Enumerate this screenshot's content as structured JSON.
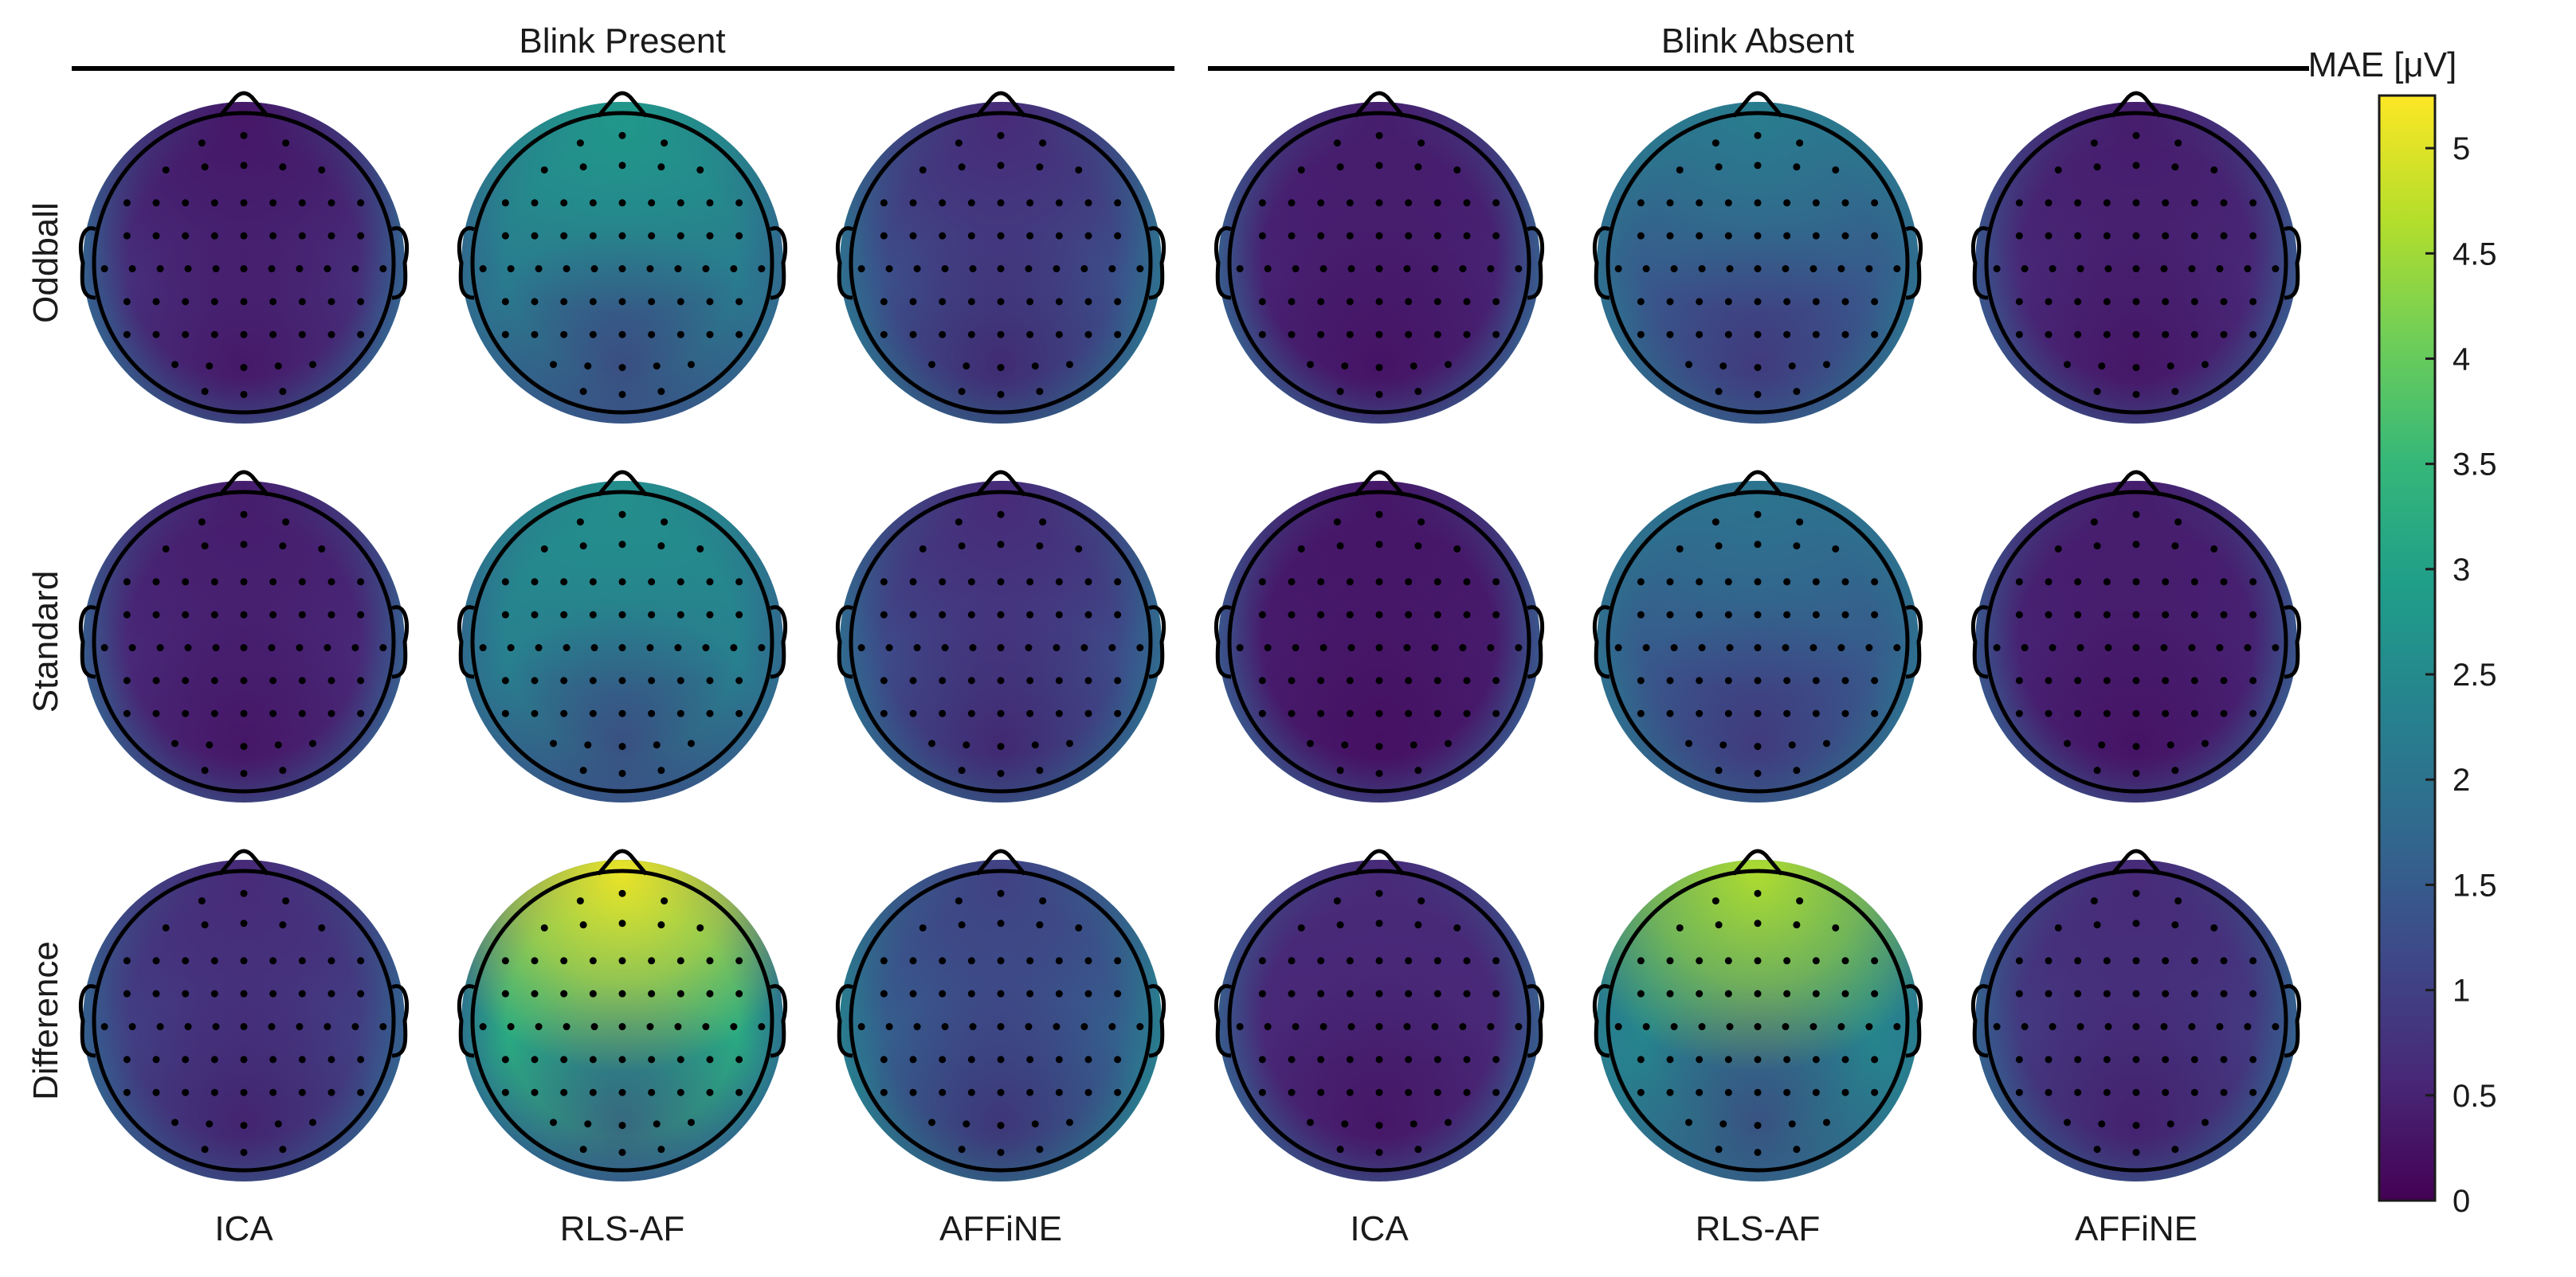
{
  "groups": [
    {
      "label": "Blink Present"
    },
    {
      "label": "Blink Absent"
    }
  ],
  "row_labels": [
    "Oddball",
    "Standard",
    "Difference"
  ],
  "column_labels": [
    "ICA",
    "RLS-AF",
    "AFFiNE",
    "ICA",
    "RLS-AF",
    "AFFiNE"
  ],
  "colorbar": {
    "label": "MAE [μV]",
    "min": 0,
    "max": 5.25,
    "tick_labels": [
      "0",
      "0.5",
      "1",
      "1.5",
      "2",
      "2.5",
      "3",
      "3.5",
      "4",
      "4.5",
      "5"
    ],
    "colormap": "viridis",
    "colors": [
      "#440154",
      "#482878",
      "#3e4989",
      "#31688e",
      "#26828e",
      "#1f9e89",
      "#35b779",
      "#6ece58",
      "#b5de2b",
      "#fde725"
    ]
  },
  "maps": [
    [
      {
        "base": 0.7,
        "rim": 1.6,
        "frontal": 0.3,
        "occipital": 0.1
      },
      {
        "base": 2.2,
        "rim": 1.8,
        "frontal": 2.8,
        "occipital": 0.6
      },
      {
        "base": 1.3,
        "rim": 1.9,
        "frontal": 0.6,
        "occipital": 0.2
      },
      {
        "base": 0.5,
        "rim": 1.5,
        "frontal": 0.4,
        "occipital": 0.1
      },
      {
        "base": 1.5,
        "rim": 1.9,
        "frontal": 2.2,
        "occipital": 0.5
      },
      {
        "base": 0.6,
        "rim": 1.4,
        "frontal": 0.4,
        "occipital": 0.1
      }
    ],
    [
      {
        "base": 0.6,
        "rim": 1.5,
        "frontal": 0.4,
        "occipital": 0.1
      },
      {
        "base": 2.3,
        "rim": 1.8,
        "frontal": 2.6,
        "occipital": 0.6
      },
      {
        "base": 1.2,
        "rim": 1.8,
        "frontal": 0.6,
        "occipital": 0.2
      },
      {
        "base": 0.4,
        "rim": 1.4,
        "frontal": 0.3,
        "occipital": 0.1
      },
      {
        "base": 1.5,
        "rim": 1.9,
        "frontal": 2.0,
        "occipital": 0.5
      },
      {
        "base": 0.5,
        "rim": 1.4,
        "frontal": 0.4,
        "occipital": 0.1
      }
    ],
    [
      {
        "base": 1.0,
        "rim": 1.6,
        "frontal": 0.6,
        "occipital": 0.2
      },
      {
        "base": 3.2,
        "rim": 2.0,
        "frontal": 5.1,
        "occipital": 0.8
      },
      {
        "base": 1.6,
        "rim": 2.2,
        "frontal": 1.0,
        "occipital": 0.3
      },
      {
        "base": 0.6,
        "rim": 1.5,
        "frontal": 0.6,
        "occipital": 0.1
      },
      {
        "base": 2.4,
        "rim": 2.2,
        "frontal": 4.6,
        "occipital": 0.6
      },
      {
        "base": 0.9,
        "rim": 1.6,
        "frontal": 0.6,
        "occipital": 0.2
      }
    ]
  ]
}
